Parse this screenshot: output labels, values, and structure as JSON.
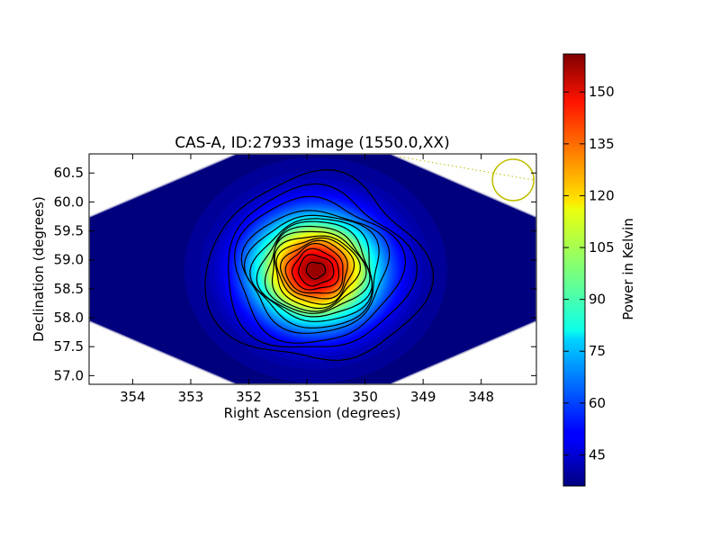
{
  "chart_data": {
    "type": "heatmap",
    "title": "CAS-A, ID:27933 image (1550.0,XX)",
    "xlabel": "Right Ascension (degrees)",
    "ylabel": "Declination (degrees)",
    "x_ticks": [
      354,
      353,
      352,
      351,
      350,
      349,
      348
    ],
    "y_ticks": [
      57.0,
      57.5,
      58.0,
      58.5,
      59.0,
      59.5,
      60.0,
      60.5
    ],
    "x_tick_labels": [
      "354",
      "353",
      "352",
      "351",
      "350",
      "349",
      "348"
    ],
    "y_tick_labels": [
      "57.0",
      "57.5",
      "58.0",
      "58.5",
      "59.0",
      "59.5",
      "60.0",
      "60.5"
    ],
    "xlim": [
      354.75,
      347.05
    ],
    "ylim": [
      56.85,
      60.83
    ],
    "x_inverted": true,
    "colorbar": {
      "label": "Power in Kelvin",
      "ticks": [
        45,
        60,
        75,
        90,
        105,
        120,
        135,
        150
      ],
      "tick_labels": [
        "45",
        "60",
        "75",
        "90",
        "105",
        "120",
        "135",
        "150"
      ],
      "range": [
        36,
        161
      ],
      "colormap": "jet"
    },
    "source": {
      "ra": 350.85,
      "dec": 58.82,
      "peak_kelvin": 160,
      "background_kelvin": 38
    },
    "contour_levels": [
      45,
      52,
      60,
      68,
      75,
      83,
      90,
      98,
      105,
      113,
      120,
      128,
      135,
      143,
      150,
      157
    ],
    "beam_marker": {
      "ra": 347.45,
      "dec": 60.38,
      "color": "#bfbf00"
    },
    "grid": false,
    "legend": "none"
  },
  "colors": {
    "background": "#00007f",
    "contour": "#000000",
    "beam": "#bfbf00",
    "outside": "#ffffff"
  }
}
